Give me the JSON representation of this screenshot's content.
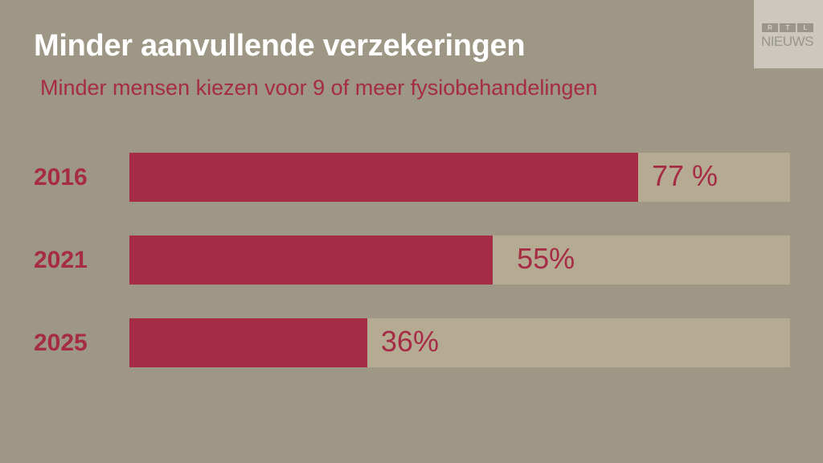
{
  "title": "Minder aanvullende verzekeringen",
  "subtitle": "Minder mensen kiezen voor 9 of meer fysiobehandelingen",
  "logo": {
    "letters": [
      "R",
      "T",
      "L"
    ],
    "text": "NIEUWS"
  },
  "chart_data": {
    "type": "bar",
    "orientation": "horizontal",
    "title": "Minder aanvullende verzekeringen",
    "subtitle": "Minder mensen kiezen voor 9 of meer fysiobehandelingen",
    "categories": [
      "2016",
      "2021",
      "2025"
    ],
    "values": [
      77,
      55,
      36
    ],
    "labels": [
      "77 %",
      "55%",
      "36%"
    ],
    "xlim": [
      0,
      100
    ],
    "unit": "%",
    "colors": {
      "fill": "#a62b45",
      "track": "#b5ab93",
      "background": "#9e9785"
    }
  }
}
